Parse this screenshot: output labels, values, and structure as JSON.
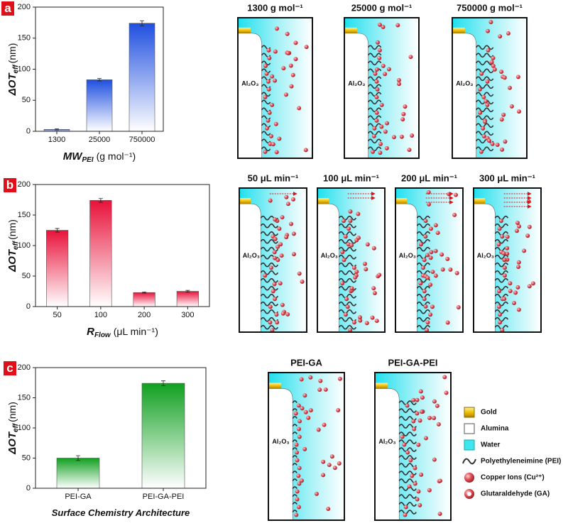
{
  "chart_data": [
    {
      "type": "bar",
      "panel_label": "a",
      "categories": [
        "1300",
        "25000",
        "750000"
      ],
      "values": [
        3,
        83,
        174
      ],
      "errors": [
        1,
        2,
        4
      ],
      "color": "#1f4fe0",
      "ylim": [
        0,
        200
      ],
      "yticks": [
        0,
        50,
        100,
        150,
        200
      ],
      "y_label": {
        "text": "ΔOT",
        "sub": "eff",
        "unit": "(nm)"
      },
      "x_label": {
        "text": "MW",
        "sub": "PEI",
        "unit": "(g mol⁻¹)"
      }
    },
    {
      "type": "bar",
      "panel_label": "b",
      "categories": [
        "50",
        "100",
        "200",
        "300"
      ],
      "values": [
        125,
        174,
        23,
        25
      ],
      "errors": [
        3,
        3,
        1,
        1.5
      ],
      "color": "#e8123a",
      "ylim": [
        0,
        200
      ],
      "yticks": [
        0,
        50,
        100,
        150,
        200
      ],
      "y_label": {
        "text": "ΔOT",
        "sub": "eff",
        "unit": "(nm)"
      },
      "x_label": {
        "text": "R",
        "sub": "Flow",
        "unit": "(μL min⁻¹)"
      }
    },
    {
      "type": "bar",
      "panel_label": "c",
      "categories": [
        "PEI-GA",
        "PEI-GA-PEI"
      ],
      "values": [
        50,
        174
      ],
      "errors": [
        4,
        4
      ],
      "color": "#10a020",
      "ylim": [
        0,
        200
      ],
      "yticks": [
        0,
        50,
        100,
        150,
        200
      ],
      "y_label": {
        "text": "ΔOT",
        "sub": "eff",
        "unit": "(nm)"
      },
      "x_label": {
        "text": "Surface Chemistry Architecture"
      }
    }
  ],
  "schematics": [
    {
      "titles": [
        "1300 g mol⁻¹",
        "25000 g mol⁻¹",
        "750000 g mol⁻¹"
      ],
      "alumina_label": "Al₂O₃"
    },
    {
      "titles": [
        "50 μL min⁻¹",
        "100 μL min⁻¹",
        "200 μL min⁻¹",
        "300 μL min⁻¹"
      ],
      "alumina_label": "Al₂O₃"
    },
    {
      "titles": [
        "PEI-GA",
        "PEI-GA-PEI"
      ],
      "alumina_label": "Al₂O₃"
    }
  ],
  "legend": [
    "Gold",
    "Alumina",
    "Water",
    "Polyethyleneimine (PEI)",
    "Copper Ions (Cu²⁺)",
    "Glutaraldehyde (GA)"
  ]
}
